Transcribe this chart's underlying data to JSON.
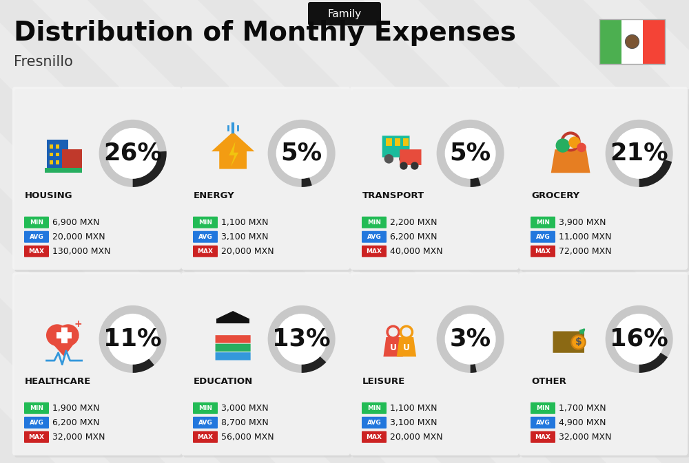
{
  "title": "Distribution of Monthly Expenses",
  "subtitle": "Fresnillo",
  "category_label": "Family",
  "background_color": "#ebebeb",
  "stripe_color": "#e0e0e0",
  "header_bg": "#111111",
  "categories": [
    {
      "name": "HOUSING",
      "pct": 26,
      "min_val": "6,900 MXN",
      "avg_val": "20,000 MXN",
      "max_val": "130,000 MXN",
      "row": 0,
      "col": 0
    },
    {
      "name": "ENERGY",
      "pct": 5,
      "min_val": "1,100 MXN",
      "avg_val": "3,100 MXN",
      "max_val": "20,000 MXN",
      "row": 0,
      "col": 1
    },
    {
      "name": "TRANSPORT",
      "pct": 5,
      "min_val": "2,200 MXN",
      "avg_val": "6,200 MXN",
      "max_val": "40,000 MXN",
      "row": 0,
      "col": 2
    },
    {
      "name": "GROCERY",
      "pct": 21,
      "min_val": "3,900 MXN",
      "avg_val": "11,000 MXN",
      "max_val": "72,000 MXN",
      "row": 0,
      "col": 3
    },
    {
      "name": "HEALTHCARE",
      "pct": 11,
      "min_val": "1,900 MXN",
      "avg_val": "6,200 MXN",
      "max_val": "32,000 MXN",
      "row": 1,
      "col": 0
    },
    {
      "name": "EDUCATION",
      "pct": 13,
      "min_val": "3,000 MXN",
      "avg_val": "8,700 MXN",
      "max_val": "56,000 MXN",
      "row": 1,
      "col": 1
    },
    {
      "name": "LEISURE",
      "pct": 3,
      "min_val": "1,100 MXN",
      "avg_val": "3,100 MXN",
      "max_val": "20,000 MXN",
      "row": 1,
      "col": 2
    },
    {
      "name": "OTHER",
      "pct": 16,
      "min_val": "1,700 MXN",
      "avg_val": "4,900 MXN",
      "max_val": "32,000 MXN",
      "row": 1,
      "col": 3
    }
  ],
  "min_color": "#22bb55",
  "avg_color": "#2277dd",
  "max_color": "#cc2222",
  "arc_dark": "#222222",
  "arc_light": "#c8c8c8",
  "cell_bg": "#f7f7f7",
  "cell_shadow": "#d8d8d8",
  "icon_colors": {
    "HOUSING": [
      "#1a5fb4",
      "#e74c3c",
      "#f39c12"
    ],
    "ENERGY": [
      "#f39c12",
      "#3498db"
    ],
    "TRANSPORT": [
      "#1abc9c",
      "#e74c3c"
    ],
    "GROCERY": [
      "#e67e22",
      "#27ae60"
    ],
    "HEALTHCARE": [
      "#e74c3c",
      "#3498db"
    ],
    "EDUCATION": [
      "#9b59b6",
      "#f39c12"
    ],
    "LEISURE": [
      "#e74c3c",
      "#f39c12"
    ],
    "OTHER": [
      "#8B6914",
      "#27ae60"
    ]
  },
  "flag_green": "#4caf50",
  "flag_white": "#ffffff",
  "flag_red": "#f44336"
}
